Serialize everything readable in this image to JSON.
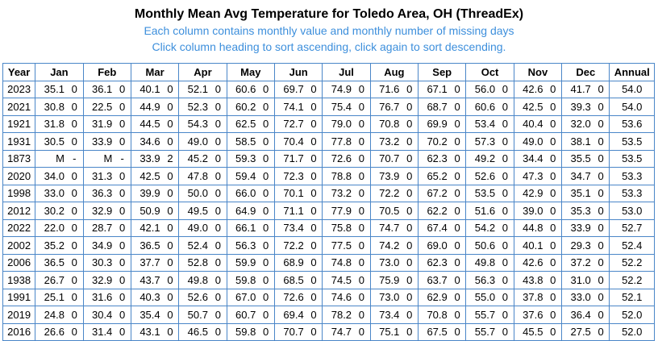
{
  "header": {
    "title": "Monthly Mean Avg Temperature for Toledo Area, OH (ThreadEx)",
    "notes": [
      "Each column contains monthly value and monthly number of missing days",
      "Click column heading to sort ascending, click again to sort descending."
    ]
  },
  "table": {
    "columns": [
      "Year",
      "Jan",
      "Feb",
      "Mar",
      "Apr",
      "May",
      "Jun",
      "Jul",
      "Aug",
      "Sep",
      "Oct",
      "Nov",
      "Dec",
      "Annual"
    ],
    "rows": [
      [
        "2023",
        "35.1",
        "0",
        "36.1",
        "0",
        "40.1",
        "0",
        "52.1",
        "0",
        "60.6",
        "0",
        "69.7",
        "0",
        "74.9",
        "0",
        "71.6",
        "0",
        "67.1",
        "0",
        "56.0",
        "0",
        "42.6",
        "0",
        "41.7",
        "0",
        "54.0"
      ],
      [
        "2021",
        "30.8",
        "0",
        "22.5",
        "0",
        "44.9",
        "0",
        "52.3",
        "0",
        "60.2",
        "0",
        "74.1",
        "0",
        "75.4",
        "0",
        "76.7",
        "0",
        "68.7",
        "0",
        "60.6",
        "0",
        "42.5",
        "0",
        "39.3",
        "0",
        "54.0"
      ],
      [
        "1921",
        "31.8",
        "0",
        "31.9",
        "0",
        "44.5",
        "0",
        "54.3",
        "0",
        "62.5",
        "0",
        "72.7",
        "0",
        "79.0",
        "0",
        "70.8",
        "0",
        "69.9",
        "0",
        "53.4",
        "0",
        "40.4",
        "0",
        "32.0",
        "0",
        "53.6"
      ],
      [
        "1931",
        "30.5",
        "0",
        "33.9",
        "0",
        "34.6",
        "0",
        "49.0",
        "0",
        "58.5",
        "0",
        "70.4",
        "0",
        "77.8",
        "0",
        "73.2",
        "0",
        "70.2",
        "0",
        "57.3",
        "0",
        "49.0",
        "0",
        "38.1",
        "0",
        "53.5"
      ],
      [
        "1873",
        "M",
        "-",
        "M",
        "-",
        "33.9",
        "2",
        "45.2",
        "0",
        "59.3",
        "0",
        "71.7",
        "0",
        "72.6",
        "0",
        "70.7",
        "0",
        "62.3",
        "0",
        "49.2",
        "0",
        "34.4",
        "0",
        "35.5",
        "0",
        "53.5"
      ],
      [
        "2020",
        "34.0",
        "0",
        "31.3",
        "0",
        "42.5",
        "0",
        "47.8",
        "0",
        "59.4",
        "0",
        "72.3",
        "0",
        "78.8",
        "0",
        "73.9",
        "0",
        "65.2",
        "0",
        "52.6",
        "0",
        "47.3",
        "0",
        "34.7",
        "0",
        "53.3"
      ],
      [
        "1998",
        "33.0",
        "0",
        "36.3",
        "0",
        "39.9",
        "0",
        "50.0",
        "0",
        "66.0",
        "0",
        "70.1",
        "0",
        "73.2",
        "0",
        "72.2",
        "0",
        "67.2",
        "0",
        "53.5",
        "0",
        "42.9",
        "0",
        "35.1",
        "0",
        "53.3"
      ],
      [
        "2012",
        "30.2",
        "0",
        "32.9",
        "0",
        "50.9",
        "0",
        "49.5",
        "0",
        "64.9",
        "0",
        "71.1",
        "0",
        "77.9",
        "0",
        "70.5",
        "0",
        "62.2",
        "0",
        "51.6",
        "0",
        "39.0",
        "0",
        "35.3",
        "0",
        "53.0"
      ],
      [
        "2022",
        "22.0",
        "0",
        "28.7",
        "0",
        "42.1",
        "0",
        "49.0",
        "0",
        "66.1",
        "0",
        "73.4",
        "0",
        "75.8",
        "0",
        "74.7",
        "0",
        "67.4",
        "0",
        "54.2",
        "0",
        "44.8",
        "0",
        "33.9",
        "0",
        "52.7"
      ],
      [
        "2002",
        "35.2",
        "0",
        "34.9",
        "0",
        "36.5",
        "0",
        "52.4",
        "0",
        "56.3",
        "0",
        "72.2",
        "0",
        "77.5",
        "0",
        "74.2",
        "0",
        "69.0",
        "0",
        "50.6",
        "0",
        "40.1",
        "0",
        "29.3",
        "0",
        "52.4"
      ],
      [
        "2006",
        "36.5",
        "0",
        "30.3",
        "0",
        "37.7",
        "0",
        "52.8",
        "0",
        "59.9",
        "0",
        "68.9",
        "0",
        "74.8",
        "0",
        "73.0",
        "0",
        "62.3",
        "0",
        "49.8",
        "0",
        "42.6",
        "0",
        "37.2",
        "0",
        "52.2"
      ],
      [
        "1938",
        "26.7",
        "0",
        "32.9",
        "0",
        "43.7",
        "0",
        "49.8",
        "0",
        "59.8",
        "0",
        "68.5",
        "0",
        "74.5",
        "0",
        "75.9",
        "0",
        "63.7",
        "0",
        "56.3",
        "0",
        "43.8",
        "0",
        "31.0",
        "0",
        "52.2"
      ],
      [
        "1991",
        "25.1",
        "0",
        "31.6",
        "0",
        "40.3",
        "0",
        "52.6",
        "0",
        "67.0",
        "0",
        "72.6",
        "0",
        "74.6",
        "0",
        "73.0",
        "0",
        "62.9",
        "0",
        "55.0",
        "0",
        "37.8",
        "0",
        "33.0",
        "0",
        "52.1"
      ],
      [
        "2019",
        "24.8",
        "0",
        "30.4",
        "0",
        "35.4",
        "0",
        "50.7",
        "0",
        "60.7",
        "0",
        "69.4",
        "0",
        "78.2",
        "0",
        "73.4",
        "0",
        "70.8",
        "0",
        "55.7",
        "0",
        "37.6",
        "0",
        "36.4",
        "0",
        "52.0"
      ],
      [
        "2016",
        "26.6",
        "0",
        "31.4",
        "0",
        "43.1",
        "0",
        "46.5",
        "0",
        "59.8",
        "0",
        "70.7",
        "0",
        "74.7",
        "0",
        "75.1",
        "0",
        "67.5",
        "0",
        "55.7",
        "0",
        "45.5",
        "0",
        "27.5",
        "0",
        "52.0"
      ]
    ]
  }
}
